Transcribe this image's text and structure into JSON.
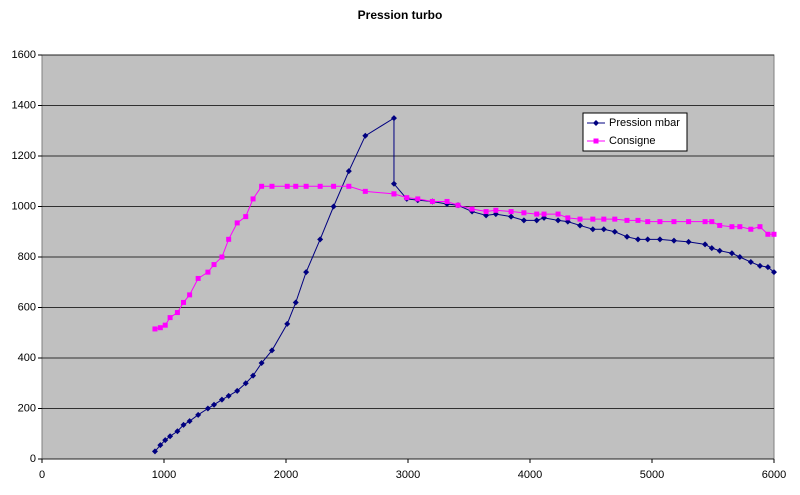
{
  "chart_data": {
    "type": "line",
    "title": "Pression turbo",
    "x": [
      926,
      970,
      1010,
      1050,
      1110,
      1160,
      1210,
      1280,
      1360,
      1410,
      1475,
      1530,
      1600,
      1670,
      1730,
      1800,
      1885,
      2010,
      2080,
      2165,
      2280,
      2390,
      2515,
      2650,
      2885,
      2885,
      2990,
      3080,
      3200,
      3320,
      3410,
      3525,
      3640,
      3720,
      3845,
      3950,
      4055,
      4115,
      4230,
      4310,
      4410,
      4515,
      4605,
      4695,
      4795,
      4885,
      4965,
      5065,
      5180,
      5300,
      5435,
      5490,
      5555,
      5655,
      5720,
      5810,
      5885,
      5950,
      6000
    ],
    "series": [
      {
        "name": "Pression mbar",
        "color": "#000080",
        "marker": "diamond",
        "values": [
          30,
          55,
          75,
          90,
          110,
          135,
          150,
          175,
          200,
          215,
          235,
          250,
          270,
          300,
          330,
          380,
          430,
          535,
          620,
          740,
          870,
          1000,
          1140,
          1280,
          1350,
          1090,
          1030,
          1025,
          1020,
          1010,
          1005,
          980,
          965,
          970,
          960,
          945,
          945,
          955,
          945,
          940,
          925,
          910,
          910,
          900,
          880,
          870,
          870,
          870,
          865,
          860,
          850,
          835,
          825,
          815,
          800,
          780,
          765,
          760,
          740
        ]
      },
      {
        "name": "Consigne",
        "color": "#ff00ff",
        "marker": "square",
        "values": [
          515,
          520,
          530,
          560,
          580,
          620,
          650,
          715,
          740,
          770,
          800,
          870,
          935,
          960,
          1030,
          1080,
          1080,
          1080,
          1080,
          1080,
          1080,
          1080,
          1080,
          1060,
          1050,
          1050,
          1035,
          1030,
          1020,
          1020,
          1005,
          990,
          980,
          985,
          980,
          975,
          970,
          970,
          970,
          955,
          950,
          950,
          950,
          950,
          945,
          945,
          940,
          940,
          940,
          940,
          940,
          940,
          925,
          920,
          920,
          910,
          920,
          890,
          890
        ]
      }
    ],
    "xlim": [
      0,
      6000
    ],
    "xticks": [
      0,
      1000,
      2000,
      3000,
      4000,
      5000,
      6000
    ],
    "ylim": [
      0,
      1600
    ],
    "yticks": [
      0,
      200,
      400,
      600,
      800,
      1000,
      1200,
      1400,
      1600
    ],
    "grid": true,
    "legend": "upper-right",
    "background": "#c0c0c0"
  }
}
